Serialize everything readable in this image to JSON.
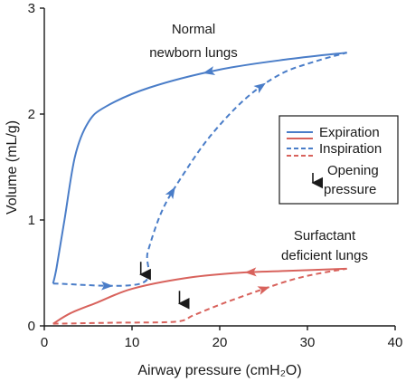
{
  "chart_data": {
    "type": "line",
    "xlabel": "Airway pressure (cmH₂O)",
    "ylabel": "Volume (mL/g)",
    "xlim": [
      0,
      40
    ],
    "ylim": [
      0,
      3
    ],
    "x_ticks": [
      "0",
      "10",
      "20",
      "30",
      "40"
    ],
    "y_ticks": [
      "0",
      "1",
      "2",
      "3"
    ],
    "grid": false,
    "colors": {
      "normal": "#4a7dc8",
      "surfactant": "#d8625c",
      "axis": "#1a1a1a"
    },
    "curves": [
      {
        "group": "normal",
        "phase": "inspiration",
        "style": "dashed",
        "points": [
          [
            1,
            0.4
          ],
          [
            11,
            0.4
          ],
          [
            11.8,
            0.7
          ],
          [
            13.5,
            1.1
          ],
          [
            16,
            1.45
          ],
          [
            19,
            1.8
          ],
          [
            23,
            2.15
          ],
          [
            27,
            2.38
          ],
          [
            31,
            2.5
          ],
          [
            34.5,
            2.58
          ]
        ]
      },
      {
        "group": "normal",
        "phase": "expiration",
        "style": "solid",
        "points": [
          [
            34.5,
            2.58
          ],
          [
            28,
            2.52
          ],
          [
            20,
            2.42
          ],
          [
            12,
            2.25
          ],
          [
            7,
            2.07
          ],
          [
            5,
            1.92
          ],
          [
            3.5,
            1.6
          ],
          [
            2.3,
            1.0
          ],
          [
            1.4,
            0.55
          ],
          [
            1,
            0.4
          ]
        ]
      },
      {
        "group": "surfactant",
        "phase": "inspiration",
        "style": "dashed",
        "points": [
          [
            1,
            0.02
          ],
          [
            8,
            0.03
          ],
          [
            15,
            0.04
          ],
          [
            17,
            0.1
          ],
          [
            20,
            0.2
          ],
          [
            24,
            0.32
          ],
          [
            28,
            0.43
          ],
          [
            31,
            0.49
          ],
          [
            34.5,
            0.54
          ]
        ]
      },
      {
        "group": "surfactant",
        "phase": "expiration",
        "style": "solid",
        "points": [
          [
            34.5,
            0.54
          ],
          [
            28,
            0.52
          ],
          [
            22,
            0.5
          ],
          [
            16,
            0.45
          ],
          [
            10,
            0.35
          ],
          [
            6,
            0.22
          ],
          [
            3,
            0.12
          ],
          [
            1,
            0.02
          ]
        ]
      }
    ],
    "opening_pressure_markers": [
      {
        "group": "normal",
        "x": 11,
        "y": 0.4
      },
      {
        "group": "surfactant",
        "x": 15,
        "y": 0.04
      }
    ],
    "annotations": [
      {
        "text_lines": [
          "Normal",
          "newborn lungs"
        ]
      },
      {
        "text_lines": [
          "Surfactant",
          "deficient lungs"
        ]
      }
    ],
    "legend": {
      "position": "right",
      "entries": [
        {
          "label": "Expiration",
          "style": "solid"
        },
        {
          "label": "Inspiration",
          "style": "dashed"
        },
        {
          "label_lines": [
            "Opening",
            "pressure"
          ],
          "style": "arrow"
        }
      ]
    }
  }
}
